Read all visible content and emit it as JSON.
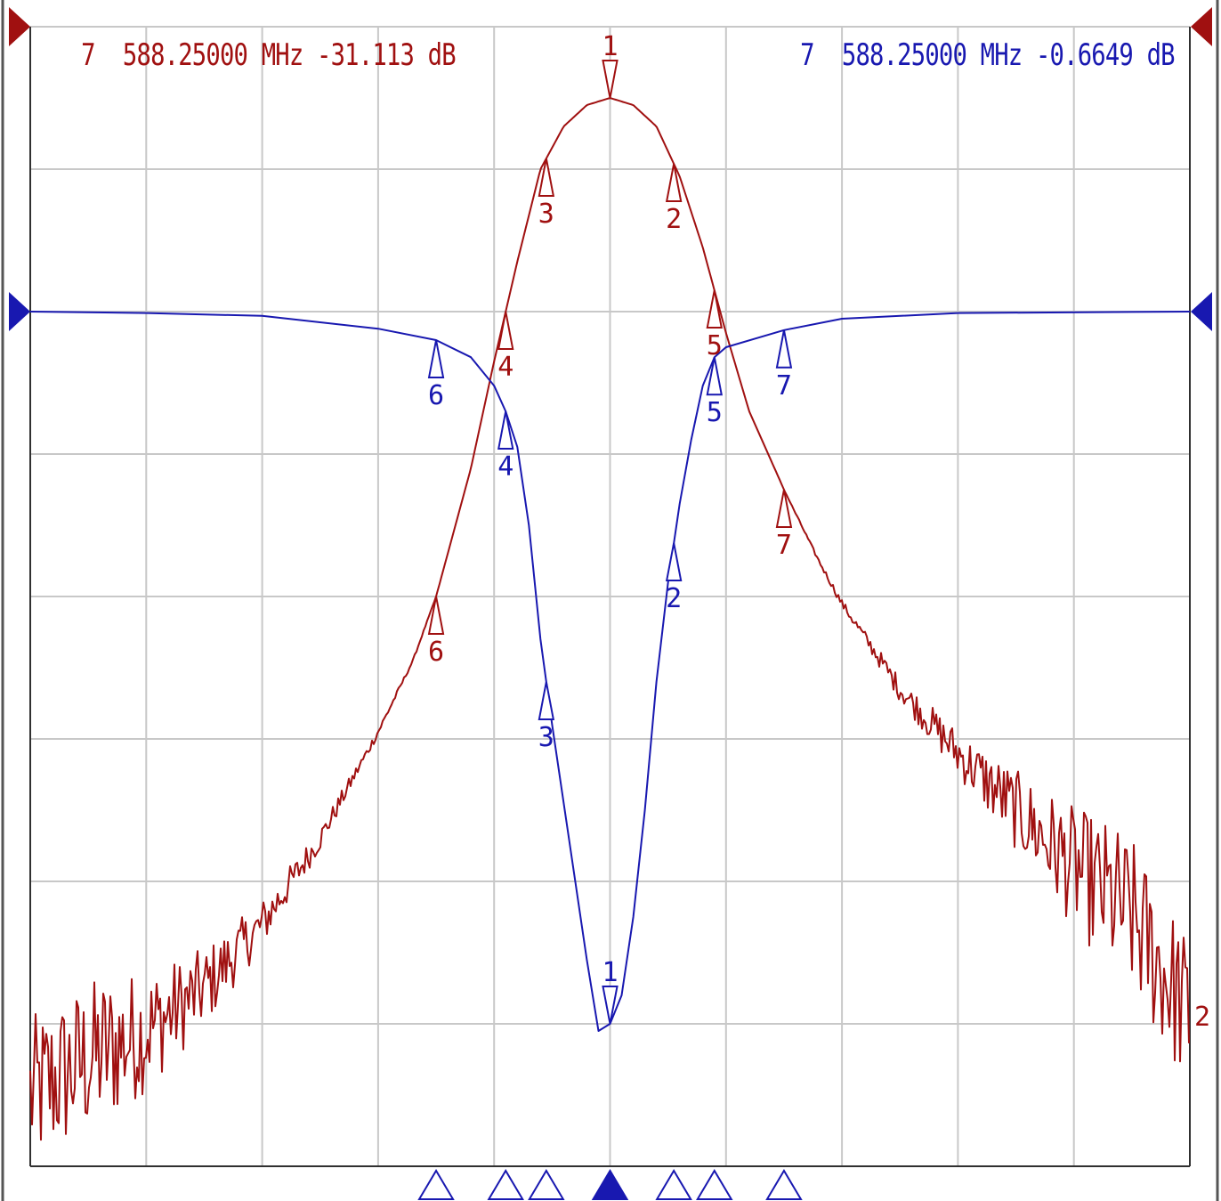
{
  "colors": {
    "red_trace": "#a01010",
    "blue_trace": "#1818b0",
    "grid": "#c8c8c8",
    "background": "#ffffff"
  },
  "readouts": {
    "left": {
      "marker": "7",
      "freq": "588.25000",
      "freq_unit": "MHz",
      "value": "-31.113",
      "value_unit": "dB"
    },
    "right": {
      "marker": "7",
      "freq": "588.25000",
      "freq_unit": "MHz",
      "value": "-0.6649",
      "value_unit": "dB"
    }
  },
  "chart_data": {
    "type": "line",
    "grid": true,
    "grid_divisions": {
      "x": 10,
      "y": 8
    },
    "xlim": [
      0,
      10
    ],
    "ylim": [
      0,
      8
    ],
    "series": [
      {
        "id": "trace1",
        "color": "#a01010",
        "noisy_floor": true,
        "end_label": "2",
        "points": [
          [
            0.0,
            0.5
          ],
          [
            0.5,
            0.75
          ],
          [
            1.0,
            0.95
          ],
          [
            1.5,
            1.25
          ],
          [
            2.0,
            1.7
          ],
          [
            2.5,
            2.3
          ],
          [
            3.0,
            3.05
          ],
          [
            3.3,
            3.55
          ],
          [
            3.5,
            4.0
          ],
          [
            3.8,
            4.9
          ],
          [
            4.0,
            5.65
          ],
          [
            4.2,
            6.35
          ],
          [
            4.4,
            7.0
          ],
          [
            4.6,
            7.3
          ],
          [
            4.8,
            7.45
          ],
          [
            5.0,
            7.5
          ],
          [
            5.2,
            7.45
          ],
          [
            5.4,
            7.3
          ],
          [
            5.6,
            6.95
          ],
          [
            5.8,
            6.45
          ],
          [
            6.0,
            5.85
          ],
          [
            6.2,
            5.3
          ],
          [
            6.5,
            4.75
          ],
          [
            6.8,
            4.25
          ],
          [
            7.0,
            3.95
          ],
          [
            7.5,
            3.35
          ],
          [
            8.0,
            2.9
          ],
          [
            8.5,
            2.5
          ],
          [
            9.0,
            2.1
          ],
          [
            9.5,
            1.75
          ],
          [
            10.0,
            1.05
          ]
        ],
        "markers": [
          {
            "label": "1",
            "x": 5.0,
            "direction": "down"
          },
          {
            "label": "2",
            "x": 5.55,
            "direction": "up"
          },
          {
            "label": "3",
            "x": 4.45,
            "direction": "up"
          },
          {
            "label": "4",
            "x": 4.1,
            "direction": "up"
          },
          {
            "label": "5",
            "x": 5.9,
            "direction": "up"
          },
          {
            "label": "6",
            "x": 3.5,
            "direction": "up"
          },
          {
            "label": "7",
            "x": 6.5,
            "direction": "up"
          }
        ]
      },
      {
        "id": "trace2",
        "color": "#1818b0",
        "noisy_floor": false,
        "end_label": "",
        "points": [
          [
            0.0,
            6.0
          ],
          [
            1.0,
            5.99
          ],
          [
            2.0,
            5.97
          ],
          [
            3.0,
            5.88
          ],
          [
            3.5,
            5.8
          ],
          [
            3.8,
            5.68
          ],
          [
            4.0,
            5.48
          ],
          [
            4.1,
            5.3
          ],
          [
            4.2,
            5.05
          ],
          [
            4.3,
            4.5
          ],
          [
            4.4,
            3.7
          ],
          [
            4.5,
            3.1
          ],
          [
            4.6,
            2.55
          ],
          [
            4.7,
            2.0
          ],
          [
            4.8,
            1.45
          ],
          [
            4.9,
            0.95
          ],
          [
            5.0,
            1.0
          ],
          [
            5.1,
            1.2
          ],
          [
            5.2,
            1.75
          ],
          [
            5.3,
            2.5
          ],
          [
            5.4,
            3.4
          ],
          [
            5.5,
            4.1
          ],
          [
            5.6,
            4.65
          ],
          [
            5.7,
            5.1
          ],
          [
            5.8,
            5.48
          ],
          [
            5.9,
            5.68
          ],
          [
            6.0,
            5.75
          ],
          [
            6.5,
            5.87
          ],
          [
            7.0,
            5.95
          ],
          [
            8.0,
            5.99
          ],
          [
            10.0,
            6.0
          ]
        ],
        "markers": [
          {
            "label": "1",
            "x": 5.0,
            "direction": "down"
          },
          {
            "label": "2",
            "x": 5.55,
            "direction": "up"
          },
          {
            "label": "3",
            "x": 4.45,
            "direction": "up"
          },
          {
            "label": "4",
            "x": 4.1,
            "direction": "up"
          },
          {
            "label": "5",
            "x": 5.9,
            "direction": "up"
          },
          {
            "label": "6",
            "x": 3.5,
            "direction": "up"
          },
          {
            "label": "7",
            "x": 6.5,
            "direction": "up"
          }
        ]
      }
    ],
    "reference_markers": [
      {
        "series": "trace1",
        "side": "left",
        "y": 8.0
      },
      {
        "series": "trace1",
        "side": "right",
        "y": 8.0
      },
      {
        "series": "trace2",
        "side": "left",
        "y": 6.0
      },
      {
        "series": "trace2",
        "side": "right",
        "y": 6.0
      }
    ],
    "bottom_markers": [
      {
        "x": 3.5,
        "active": false
      },
      {
        "x": 4.1,
        "active": false
      },
      {
        "x": 4.45,
        "active": false
      },
      {
        "x": 5.0,
        "active": true
      },
      {
        "x": 5.55,
        "active": false
      },
      {
        "x": 5.9,
        "active": false
      },
      {
        "x": 6.5,
        "active": false
      }
    ]
  }
}
